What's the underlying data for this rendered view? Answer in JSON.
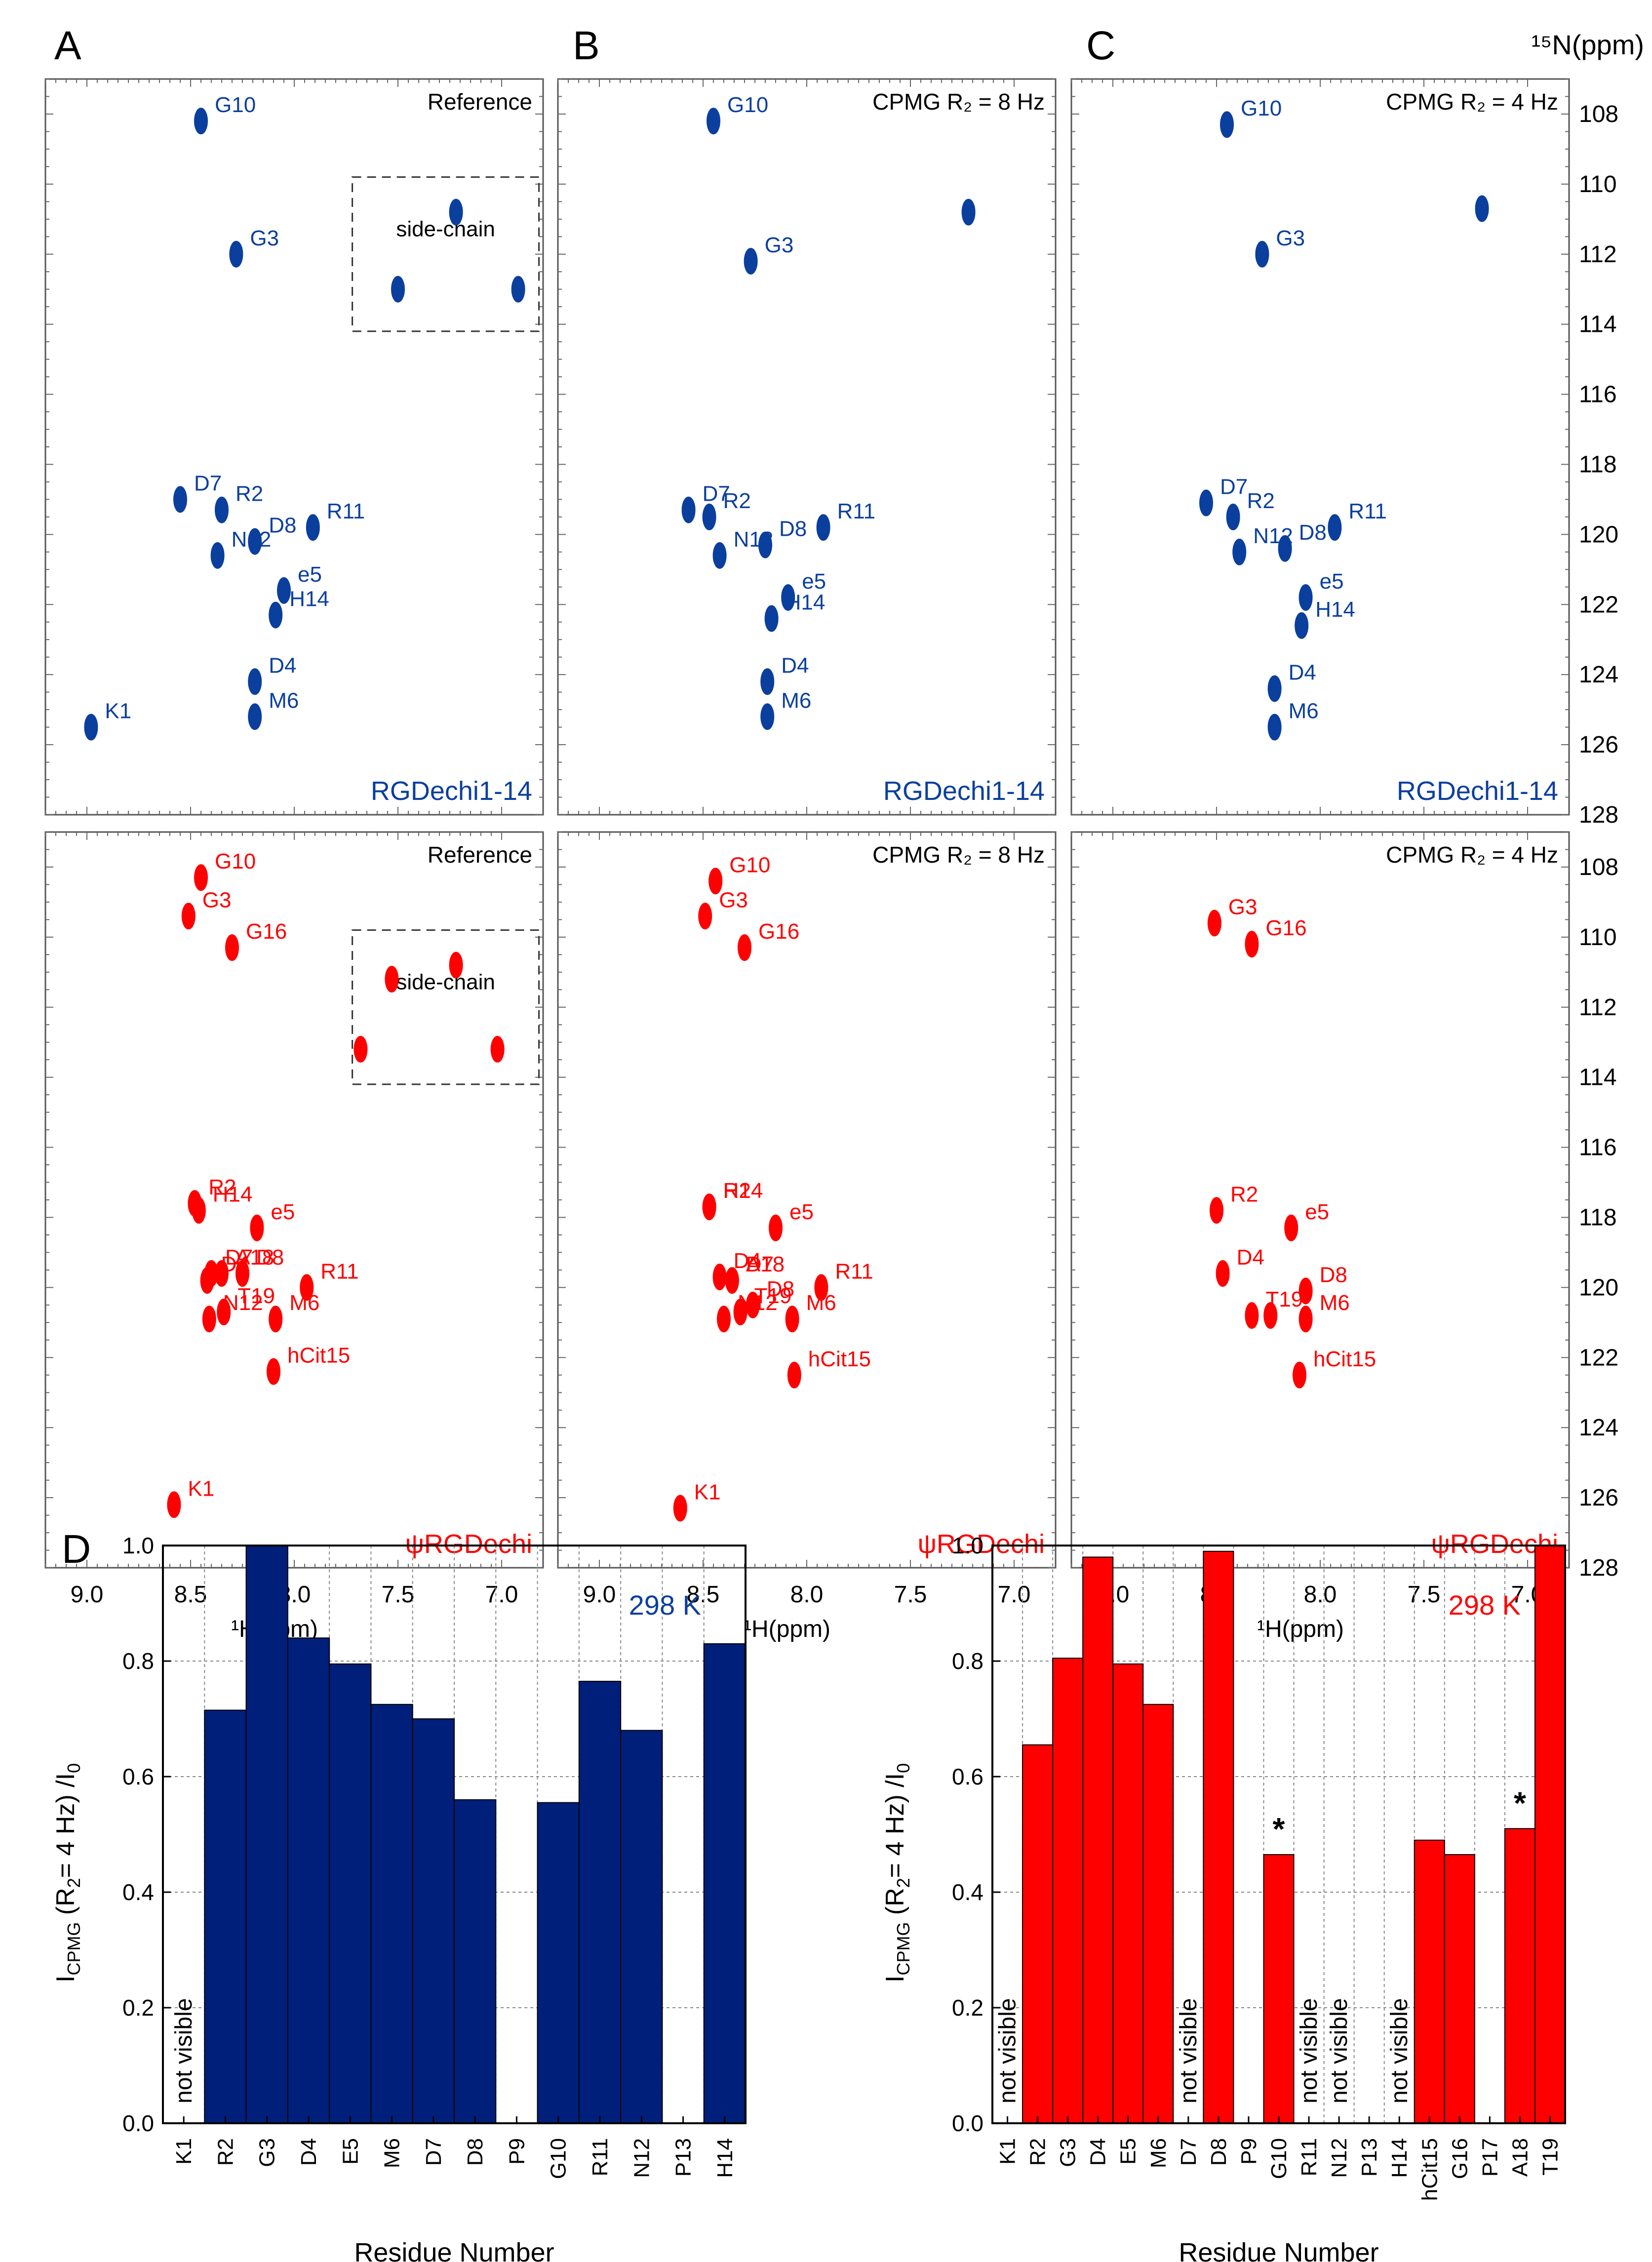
{
  "figure": {
    "panel_labels": [
      "A",
      "B",
      "C",
      "D"
    ],
    "n15_axis_label": "¹⁵N(ppm)",
    "h1_axis_label": "¹H(ppm)",
    "n15_ticks": [
      108,
      110,
      112,
      114,
      116,
      118,
      120,
      122,
      124,
      126,
      128
    ],
    "h1_ticks": [
      "9.0",
      "8.5",
      "8.0",
      "7.5",
      "7.0"
    ],
    "sidechain_label": "side-chain"
  },
  "colors": {
    "rgdechi114": "#0b3f9e",
    "psi": "#ff0000",
    "bar_blue": "#001f7a",
    "bar_red": "#ff0000"
  },
  "chart_data": [
    {
      "type": "scatter",
      "panel": "A",
      "title": "Reference",
      "label": "RGDechi1-14",
      "xlabel": "¹H(ppm)",
      "ylabel": "¹⁵N(ppm)",
      "xlim": [
        9.2,
        6.8
      ],
      "ylim": [
        107,
        128
      ],
      "points": [
        {
          "name": "G10",
          "x": 8.45,
          "y": 108.2
        },
        {
          "name": "G3",
          "x": 8.28,
          "y": 112.0
        },
        {
          "name": "",
          "x": 7.22,
          "y": 110.8
        },
        {
          "name": "",
          "x": 7.5,
          "y": 113.0
        },
        {
          "name": "",
          "x": 6.92,
          "y": 113.0
        },
        {
          "name": "D7",
          "x": 8.55,
          "y": 119.0
        },
        {
          "name": "R2",
          "x": 8.35,
          "y": 119.3
        },
        {
          "name": "D8",
          "x": 8.19,
          "y": 120.2
        },
        {
          "name": "R11",
          "x": 7.91,
          "y": 119.8
        },
        {
          "name": "N12",
          "x": 8.37,
          "y": 120.6
        },
        {
          "name": "e5",
          "x": 8.05,
          "y": 121.6
        },
        {
          "name": "H14",
          "x": 8.09,
          "y": 122.3
        },
        {
          "name": "D4",
          "x": 8.19,
          "y": 124.2
        },
        {
          "name": "M6",
          "x": 8.19,
          "y": 125.2
        },
        {
          "name": "K1",
          "x": 8.98,
          "y": 125.5
        }
      ]
    },
    {
      "type": "scatter",
      "panel": "B",
      "title": "CPMG R₂ = 8 Hz",
      "label": "RGDechi1-14",
      "xlim": [
        9.2,
        6.8
      ],
      "ylim": [
        107,
        128
      ],
      "points": [
        {
          "name": "G10",
          "x": 8.45,
          "y": 108.2
        },
        {
          "name": "G3",
          "x": 8.27,
          "y": 112.2
        },
        {
          "name": "",
          "x": 7.22,
          "y": 110.8
        },
        {
          "name": "D7",
          "x": 8.57,
          "y": 119.3
        },
        {
          "name": "R2",
          "x": 8.47,
          "y": 119.5
        },
        {
          "name": "D8",
          "x": 8.2,
          "y": 120.3
        },
        {
          "name": "R11",
          "x": 7.92,
          "y": 119.8
        },
        {
          "name": "N12",
          "x": 8.42,
          "y": 120.6
        },
        {
          "name": "e5",
          "x": 8.09,
          "y": 121.8
        },
        {
          "name": "H14",
          "x": 8.17,
          "y": 122.4
        },
        {
          "name": "D4",
          "x": 8.19,
          "y": 124.2
        },
        {
          "name": "M6",
          "x": 8.19,
          "y": 125.2
        }
      ]
    },
    {
      "type": "scatter",
      "panel": "C",
      "title": "CPMG R₂ = 4 Hz",
      "label": "RGDechi1-14",
      "xlim": [
        9.2,
        6.8
      ],
      "ylim": [
        107,
        128
      ],
      "points": [
        {
          "name": "G10",
          "x": 8.45,
          "y": 108.3
        },
        {
          "name": "G3",
          "x": 8.28,
          "y": 112.0
        },
        {
          "name": "",
          "x": 7.22,
          "y": 110.7
        },
        {
          "name": "D7",
          "x": 8.55,
          "y": 119.1
        },
        {
          "name": "R2",
          "x": 8.42,
          "y": 119.5
        },
        {
          "name": "D8",
          "x": 8.17,
          "y": 120.4
        },
        {
          "name": "R11",
          "x": 7.93,
          "y": 119.8
        },
        {
          "name": "N12",
          "x": 8.39,
          "y": 120.5
        },
        {
          "name": "e5",
          "x": 8.07,
          "y": 121.8
        },
        {
          "name": "H14",
          "x": 8.09,
          "y": 122.6
        },
        {
          "name": "D4",
          "x": 8.22,
          "y": 124.4
        },
        {
          "name": "M6",
          "x": 8.22,
          "y": 125.5
        }
      ]
    },
    {
      "type": "scatter",
      "panel": "A",
      "title": "Reference",
      "label": "ψRGDechi",
      "xlim": [
        9.2,
        6.8
      ],
      "ylim": [
        107,
        128
      ],
      "points": [
        {
          "name": "G10",
          "x": 8.45,
          "y": 108.3
        },
        {
          "name": "G3",
          "x": 8.51,
          "y": 109.4
        },
        {
          "name": "G16",
          "x": 8.3,
          "y": 110.3
        },
        {
          "name": "",
          "x": 7.22,
          "y": 110.8
        },
        {
          "name": "",
          "x": 7.53,
          "y": 111.2
        },
        {
          "name": "",
          "x": 7.68,
          "y": 113.2
        },
        {
          "name": "",
          "x": 7.02,
          "y": 113.2
        },
        {
          "name": "R2",
          "x": 8.48,
          "y": 117.6
        },
        {
          "name": "H14",
          "x": 8.46,
          "y": 117.8
        },
        {
          "name": "e5",
          "x": 8.18,
          "y": 118.3
        },
        {
          "name": "D7",
          "x": 8.4,
          "y": 119.6
        },
        {
          "name": "A18",
          "x": 8.35,
          "y": 119.6
        },
        {
          "name": "D8",
          "x": 8.25,
          "y": 119.6
        },
        {
          "name": "D4",
          "x": 8.42,
          "y": 119.8
        },
        {
          "name": "R11",
          "x": 7.94,
          "y": 120.0
        },
        {
          "name": "N12",
          "x": 8.41,
          "y": 120.9
        },
        {
          "name": "T19",
          "x": 8.34,
          "y": 120.7
        },
        {
          "name": "M6",
          "x": 8.09,
          "y": 120.9
        },
        {
          "name": "hCit15",
          "x": 8.1,
          "y": 122.4
        },
        {
          "name": "K1",
          "x": 8.58,
          "y": 126.2
        }
      ]
    },
    {
      "type": "scatter",
      "panel": "B",
      "title": "CPMG R₂ = 8 Hz",
      "label": "ψRGDechi",
      "xlim": [
        9.2,
        6.8
      ],
      "ylim": [
        107,
        128
      ],
      "points": [
        {
          "name": "G10",
          "x": 8.44,
          "y": 108.4
        },
        {
          "name": "G3",
          "x": 8.49,
          "y": 109.4
        },
        {
          "name": "G16",
          "x": 8.3,
          "y": 110.3
        },
        {
          "name": "R2",
          "x": 8.47,
          "y": 117.7
        },
        {
          "name": "H14",
          "x": 8.47,
          "y": 117.7
        },
        {
          "name": "e5",
          "x": 8.15,
          "y": 118.3
        },
        {
          "name": "A18",
          "x": 8.36,
          "y": 119.8
        },
        {
          "name": "D7",
          "x": 8.36,
          "y": 119.8
        },
        {
          "name": "D4",
          "x": 8.42,
          "y": 119.7
        },
        {
          "name": "D8",
          "x": 8.26,
          "y": 120.5
        },
        {
          "name": "R11",
          "x": 7.93,
          "y": 120.0
        },
        {
          "name": "N12",
          "x": 8.4,
          "y": 120.9
        },
        {
          "name": "T19",
          "x": 8.32,
          "y": 120.7
        },
        {
          "name": "M6",
          "x": 8.07,
          "y": 120.9
        },
        {
          "name": "hCit15",
          "x": 8.06,
          "y": 122.5
        },
        {
          "name": "K1",
          "x": 8.61,
          "y": 126.3
        }
      ]
    },
    {
      "type": "scatter",
      "panel": "C",
      "title": "CPMG R₂ = 4 Hz",
      "label": "ψRGDechi",
      "xlim": [
        9.2,
        6.8
      ],
      "ylim": [
        107,
        128
      ],
      "points": [
        {
          "name": "G3",
          "x": 8.51,
          "y": 109.6
        },
        {
          "name": "G16",
          "x": 8.33,
          "y": 110.2
        },
        {
          "name": "R2",
          "x": 8.5,
          "y": 117.8
        },
        {
          "name": "e5",
          "x": 8.14,
          "y": 118.3
        },
        {
          "name": "D4",
          "x": 8.47,
          "y": 119.6
        },
        {
          "name": "D8",
          "x": 8.07,
          "y": 120.1
        },
        {
          "name": "T19",
          "x": 8.33,
          "y": 120.8
        },
        {
          "name": "",
          "x": 8.24,
          "y": 120.8
        },
        {
          "name": "M6",
          "x": 8.07,
          "y": 120.9
        },
        {
          "name": "hCit15",
          "x": 8.1,
          "y": 122.5
        }
      ]
    },
    {
      "type": "bar",
      "panel": "D",
      "ylabel": "Iₑ",
      "ylabel_parts": [
        "I",
        "CPMG",
        " (R",
        "2",
        "= 4 Hz) /I",
        "0"
      ],
      "xlabel": "Residue Number",
      "annotation": "298 K",
      "ylim": [
        0,
        1.0
      ],
      "yticks": [
        "0.0",
        "0.2",
        "0.4",
        "0.6",
        "0.8",
        "1.0"
      ],
      "categories": [
        "K1",
        "R2",
        "G3",
        "D4",
        "E5",
        "M6",
        "D7",
        "D8",
        "P9",
        "G10",
        "R11",
        "N12",
        "P13",
        "H14"
      ],
      "values": [
        null,
        0.715,
        1.0,
        0.84,
        0.795,
        0.725,
        0.7,
        0.56,
        null,
        0.555,
        0.765,
        0.68,
        null,
        0.83
      ],
      "not_visible": [
        "K1"
      ],
      "not_visible_text": "not visible"
    },
    {
      "type": "bar",
      "panel": "D",
      "ylabel_parts": [
        "I",
        "CPMG",
        " (R",
        "2",
        "= 4 Hz) /I",
        "0"
      ],
      "xlabel": "Residue Number",
      "annotation": "298 K",
      "ylim": [
        0,
        1.0
      ],
      "yticks": [
        "0.0",
        "0.2",
        "0.4",
        "0.6",
        "0.8",
        "1.0"
      ],
      "categories": [
        "K1",
        "R2",
        "G3",
        "D4",
        "E5",
        "M6",
        "D7",
        "D8",
        "P9",
        "G10",
        "R11",
        "N12",
        "P13",
        "H14",
        "hCit15",
        "G16",
        "P17",
        "A18",
        "T19"
      ],
      "values": [
        null,
        0.655,
        0.805,
        0.98,
        0.795,
        0.725,
        null,
        0.99,
        null,
        0.465,
        null,
        null,
        null,
        null,
        0.49,
        0.465,
        null,
        0.51,
        1.0
      ],
      "not_visible": [
        "K1",
        "D7",
        "R11",
        "N12",
        "H14"
      ],
      "not_visible_text": "not visible",
      "asterisks": [
        "G10",
        "A18"
      ],
      "asterisk_text": "*"
    }
  ]
}
